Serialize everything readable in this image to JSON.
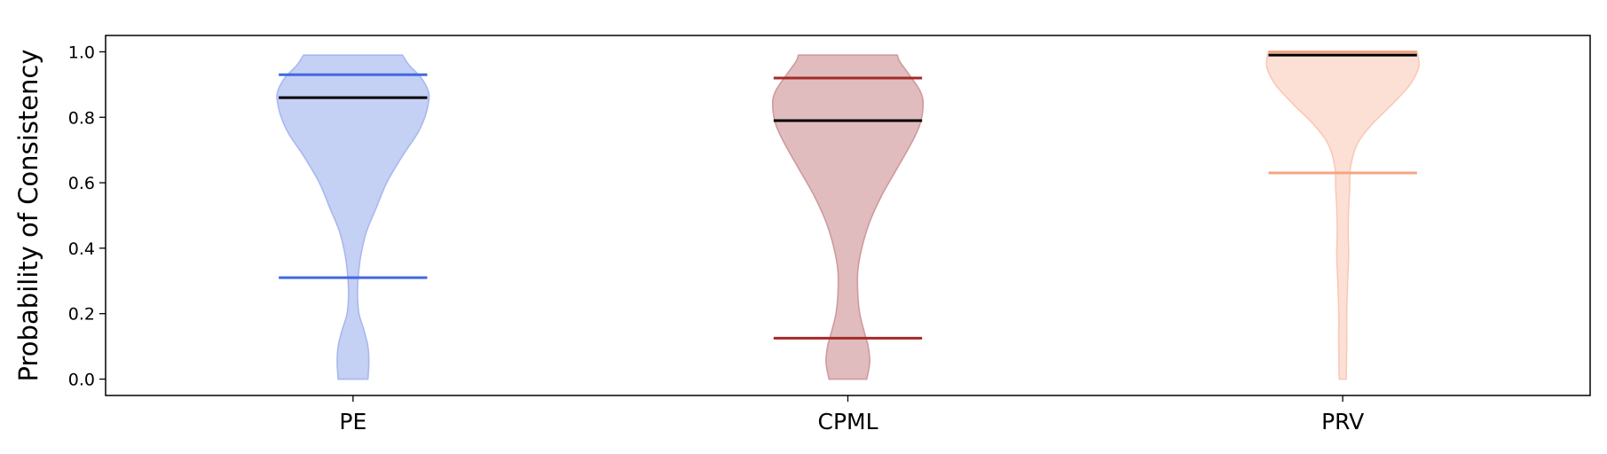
{
  "chart_data": {
    "type": "violin",
    "ylabel": "Probability of Consistency",
    "xlabel": "",
    "ylim": [
      -0.05,
      1.05
    ],
    "yticks": [
      "0.0",
      "0.2",
      "0.4",
      "0.6",
      "0.8",
      "1.0"
    ],
    "grid": false,
    "categories": [
      "PE",
      "CPML",
      "PRV"
    ],
    "violins": [
      {
        "name": "PE",
        "fill": "#c5d0f5",
        "stroke": "#a9b8ee",
        "line_color": "#4169e1",
        "min": 0.0,
        "max": 0.99,
        "lower_quantile": 0.31,
        "upper_quantile": 0.93,
        "median": 0.86,
        "profile": [
          [
            0.0,
            0.03
          ],
          [
            0.05,
            0.032
          ],
          [
            0.1,
            0.03
          ],
          [
            0.15,
            0.022
          ],
          [
            0.2,
            0.012
          ],
          [
            0.26,
            0.009
          ],
          [
            0.32,
            0.011
          ],
          [
            0.38,
            0.016
          ],
          [
            0.45,
            0.027
          ],
          [
            0.52,
            0.046
          ],
          [
            0.6,
            0.068
          ],
          [
            0.68,
            0.099
          ],
          [
            0.75,
            0.13
          ],
          [
            0.8,
            0.145
          ],
          [
            0.85,
            0.153
          ],
          [
            0.88,
            0.152
          ],
          [
            0.92,
            0.138
          ],
          [
            0.96,
            0.113
          ],
          [
            0.99,
            0.1
          ]
        ]
      },
      {
        "name": "CPML",
        "fill": "#e1bcbe",
        "stroke": "#cf9a9d",
        "line_color": "#a52a2a",
        "min": 0.0,
        "max": 0.99,
        "lower_quantile": 0.125,
        "upper_quantile": 0.92,
        "median": 0.79,
        "profile": [
          [
            0.0,
            0.038
          ],
          [
            0.05,
            0.044
          ],
          [
            0.1,
            0.041
          ],
          [
            0.15,
            0.032
          ],
          [
            0.2,
            0.024
          ],
          [
            0.26,
            0.02
          ],
          [
            0.33,
            0.02
          ],
          [
            0.4,
            0.028
          ],
          [
            0.48,
            0.044
          ],
          [
            0.56,
            0.068
          ],
          [
            0.64,
            0.098
          ],
          [
            0.72,
            0.128
          ],
          [
            0.78,
            0.146
          ],
          [
            0.84,
            0.152
          ],
          [
            0.88,
            0.146
          ],
          [
            0.93,
            0.124
          ],
          [
            0.97,
            0.105
          ],
          [
            0.99,
            0.1
          ]
        ]
      },
      {
        "name": "PRV",
        "fill": "#fde0d5",
        "stroke": "#f8c9b6",
        "line_color": "#f4a582",
        "min": 0.0,
        "max": 1.0,
        "lower_quantile": 0.63,
        "upper_quantile": 1.0,
        "median": 0.99,
        "profile": [
          [
            0.0,
            0.007
          ],
          [
            0.1,
            0.008
          ],
          [
            0.2,
            0.008
          ],
          [
            0.3,
            0.01
          ],
          [
            0.38,
            0.012
          ],
          [
            0.45,
            0.011
          ],
          [
            0.52,
            0.012
          ],
          [
            0.58,
            0.014
          ],
          [
            0.65,
            0.016
          ],
          [
            0.72,
            0.03
          ],
          [
            0.78,
            0.06
          ],
          [
            0.84,
            0.1
          ],
          [
            0.9,
            0.136
          ],
          [
            0.95,
            0.153
          ],
          [
            0.98,
            0.153
          ],
          [
            1.0,
            0.15
          ]
        ]
      }
    ],
    "median_line_color": "#000000"
  }
}
